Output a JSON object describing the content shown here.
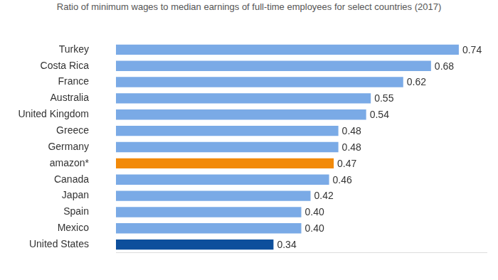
{
  "chart_data": {
    "type": "bar",
    "orientation": "horizontal",
    "title": "Ratio of minimum wages to median earnings of full-time employees for select countries (2017)",
    "categories": [
      "Turkey",
      "Costa Rica",
      "France",
      "Australia",
      "United Kingdom",
      "Greece",
      "Germany",
      "amazon*",
      "Canada",
      "Japan",
      "Spain",
      "Mexico",
      "United States"
    ],
    "values": [
      0.74,
      0.68,
      0.62,
      0.55,
      0.54,
      0.48,
      0.48,
      0.47,
      0.46,
      0.42,
      0.4,
      0.4,
      0.34
    ],
    "value_labels": [
      "0.74",
      "0.68",
      "0.62",
      "0.55",
      "0.54",
      "0.48",
      "0.48",
      "0.47",
      "0.46",
      "0.42",
      "0.40",
      "0.40",
      "0.34"
    ],
    "colors": [
      "#7aaae6",
      "#7aaae6",
      "#7aaae6",
      "#7aaae6",
      "#7aaae6",
      "#7aaae6",
      "#7aaae6",
      "#f28a0a",
      "#7aaae6",
      "#7aaae6",
      "#7aaae6",
      "#7aaae6",
      "#0d4f9c"
    ],
    "xlim": [
      0,
      0.8
    ],
    "grid": false,
    "data_labels": true,
    "tick_labels": "y"
  }
}
